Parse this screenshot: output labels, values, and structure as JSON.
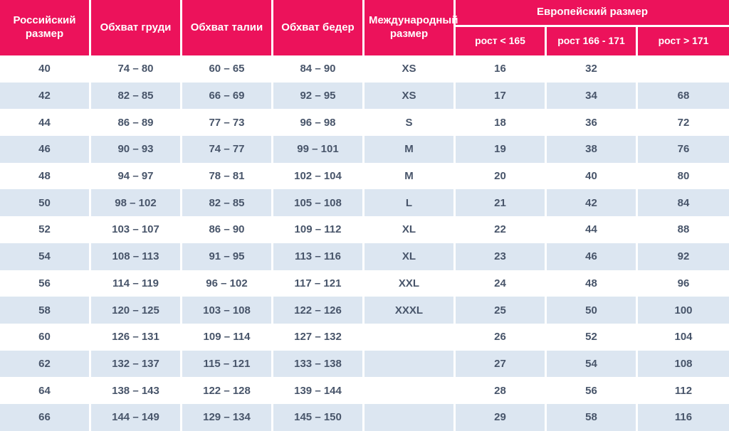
{
  "colors": {
    "header_bg": "#ec125b",
    "header_text": "#ffffff",
    "row_bg": "#ffffff",
    "row_alt_bg": "#dce6f1",
    "cell_text": "#48556a"
  },
  "table": {
    "headers": {
      "russian_size": "Российский размер",
      "chest": "Обхват груди",
      "waist": "Обхват талии",
      "hips": "Обхват бедер",
      "international_size": "Международный размер",
      "european_size": "Европейский размер",
      "height_lt_165": "рост < 165",
      "height_166_171": "рост 166 - 171",
      "height_gt_171": "рост > 171"
    }
  },
  "chart_data": {
    "type": "table",
    "columns": [
      "Российский размер",
      "Обхват груди",
      "Обхват талии",
      "Обхват бедер",
      "Международный размер",
      "Европейский размер — рост < 165",
      "Европейский размер — рост 166 - 171",
      "Европейский размер — рост > 171"
    ],
    "header_groups": [
      {
        "label": "Европейский размер",
        "covers_columns": [
          5,
          6,
          7
        ]
      }
    ],
    "rows": [
      [
        "40",
        "74 – 80",
        "60 – 65",
        "84 – 90",
        "XS",
        "16",
        "32",
        ""
      ],
      [
        "42",
        "82 – 85",
        "66 – 69",
        "92 – 95",
        "XS",
        "17",
        "34",
        "68"
      ],
      [
        "44",
        "86 – 89",
        "77 – 73",
        "96 – 98",
        "S",
        "18",
        "36",
        "72"
      ],
      [
        "46",
        "90 – 93",
        "74 – 77",
        "99 – 101",
        "M",
        "19",
        "38",
        "76"
      ],
      [
        "48",
        "94 – 97",
        "78 – 81",
        "102 – 104",
        "M",
        "20",
        "40",
        "80"
      ],
      [
        "50",
        "98 – 102",
        "82 – 85",
        "105 – 108",
        "L",
        "21",
        "42",
        "84"
      ],
      [
        "52",
        "103 – 107",
        "86 – 90",
        "109 – 112",
        "XL",
        "22",
        "44",
        "88"
      ],
      [
        "54",
        "108 – 113",
        "91 – 95",
        "113 – 116",
        "XL",
        "23",
        "46",
        "92"
      ],
      [
        "56",
        "114 – 119",
        "96 – 102",
        "117 – 121",
        "XXL",
        "24",
        "48",
        "96"
      ],
      [
        "58",
        "120 – 125",
        "103 – 108",
        "122 – 126",
        "XXXL",
        "25",
        "50",
        "100"
      ],
      [
        "60",
        "126 – 131",
        "109 – 114",
        "127 – 132",
        "",
        "26",
        "52",
        "104"
      ],
      [
        "62",
        "132 – 137",
        "115 – 121",
        "133 – 138",
        "",
        "27",
        "54",
        "108"
      ],
      [
        "64",
        "138 – 143",
        "122 – 128",
        "139 – 144",
        "",
        "28",
        "56",
        "112"
      ],
      [
        "66",
        "144 – 149",
        "129 – 134",
        "145 – 150",
        "",
        "29",
        "58",
        "116"
      ]
    ]
  }
}
